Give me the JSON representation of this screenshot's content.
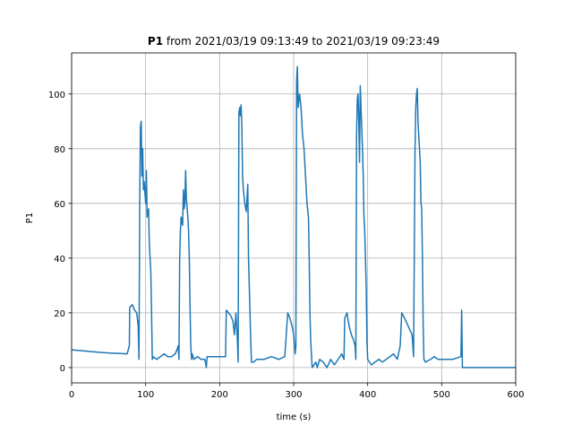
{
  "chart_data": {
    "type": "line",
    "title_label": "P1",
    "title": "from 2021/03/19 09:13:49 to 2021/03/19 09:23:49",
    "xlabel": "time (s)",
    "ylabel": "P1",
    "xlim": [
      0,
      600
    ],
    "ylim": [
      -5.6,
      115
    ],
    "xticks": [
      0,
      100,
      200,
      300,
      400,
      500,
      600
    ],
    "yticks": [
      0,
      20,
      40,
      60,
      80,
      100
    ],
    "grid": true,
    "x": [
      0,
      20,
      40,
      60,
      75,
      78,
      78.5,
      82,
      85,
      88,
      90,
      91,
      92,
      93,
      94,
      95,
      96,
      97,
      98,
      100,
      101,
      102,
      104,
      105,
      106,
      107,
      108,
      109,
      110,
      115,
      120,
      125,
      130,
      135,
      140,
      143,
      144,
      145,
      146,
      147,
      148,
      150,
      151,
      152,
      153,
      154,
      155,
      157,
      158,
      159,
      160,
      161,
      162,
      163,
      165,
      170,
      175,
      180,
      182,
      183,
      190,
      200,
      208,
      209,
      212,
      215,
      218,
      220,
      222,
      224,
      225,
      226,
      227,
      228,
      229,
      230,
      231,
      232,
      234,
      236,
      238,
      239,
      240,
      241,
      242,
      243,
      246,
      250,
      260,
      270,
      280,
      288,
      290,
      292,
      295,
      298,
      300,
      302,
      303,
      304,
      305,
      306,
      308,
      310,
      312,
      314,
      316,
      318,
      320,
      321,
      322,
      323,
      324,
      325,
      330,
      332,
      335,
      340,
      345,
      350,
      355,
      360,
      365,
      368,
      369,
      372,
      375,
      378,
      381,
      383,
      384,
      385,
      386,
      387,
      388,
      389,
      390,
      391,
      393,
      394,
      395,
      396,
      398,
      399,
      400,
      405,
      410,
      415,
      420,
      425,
      430,
      435,
      440,
      444,
      446,
      450,
      455,
      460,
      462,
      464,
      465,
      466,
      467,
      468,
      469,
      470,
      471,
      472,
      473,
      474,
      475,
      476,
      478,
      485,
      490,
      495,
      505,
      515,
      526,
      527,
      528,
      600
    ],
    "series": [
      {
        "name": "P1",
        "color": "#1f77b4",
        "values": [
          6.5,
          6,
          5.5,
          5.2,
          5,
          8,
          22,
          23,
          21,
          20,
          15,
          3,
          60,
          88,
          90,
          70,
          80,
          65,
          68,
          60,
          72,
          55,
          58,
          45,
          40,
          35,
          20,
          3,
          4,
          3,
          4,
          5,
          4,
          4,
          5,
          7,
          8,
          3,
          40,
          50,
          55,
          52,
          65,
          58,
          60,
          72,
          62,
          55,
          50,
          40,
          22,
          8,
          3,
          5,
          3,
          4,
          3,
          3,
          0,
          4,
          4,
          4,
          4,
          21,
          20,
          19,
          17,
          12,
          20,
          10,
          2,
          93,
          95,
          92,
          96,
          88,
          70,
          65,
          60,
          57,
          67,
          40,
          30,
          20,
          10,
          2,
          2,
          3,
          3,
          4,
          3,
          4,
          12,
          20,
          18,
          15,
          12,
          5,
          8,
          105,
          110,
          95,
          100,
          95,
          85,
          80,
          70,
          60,
          55,
          40,
          20,
          10,
          5,
          0,
          2,
          0,
          3,
          2,
          0,
          3,
          1,
          3,
          5,
          3,
          18,
          20,
          15,
          12,
          10,
          8,
          3,
          85,
          98,
          100,
          90,
          75,
          103,
          95,
          80,
          70,
          55,
          50,
          30,
          10,
          3,
          1,
          2,
          3,
          2,
          3,
          4,
          5,
          3,
          8,
          20,
          18,
          15,
          12,
          4,
          80,
          95,
          100,
          102,
          90,
          85,
          80,
          75,
          60,
          58,
          40,
          15,
          3,
          2,
          3,
          4,
          3,
          3,
          3,
          4,
          21,
          0,
          0
        ]
      }
    ]
  }
}
